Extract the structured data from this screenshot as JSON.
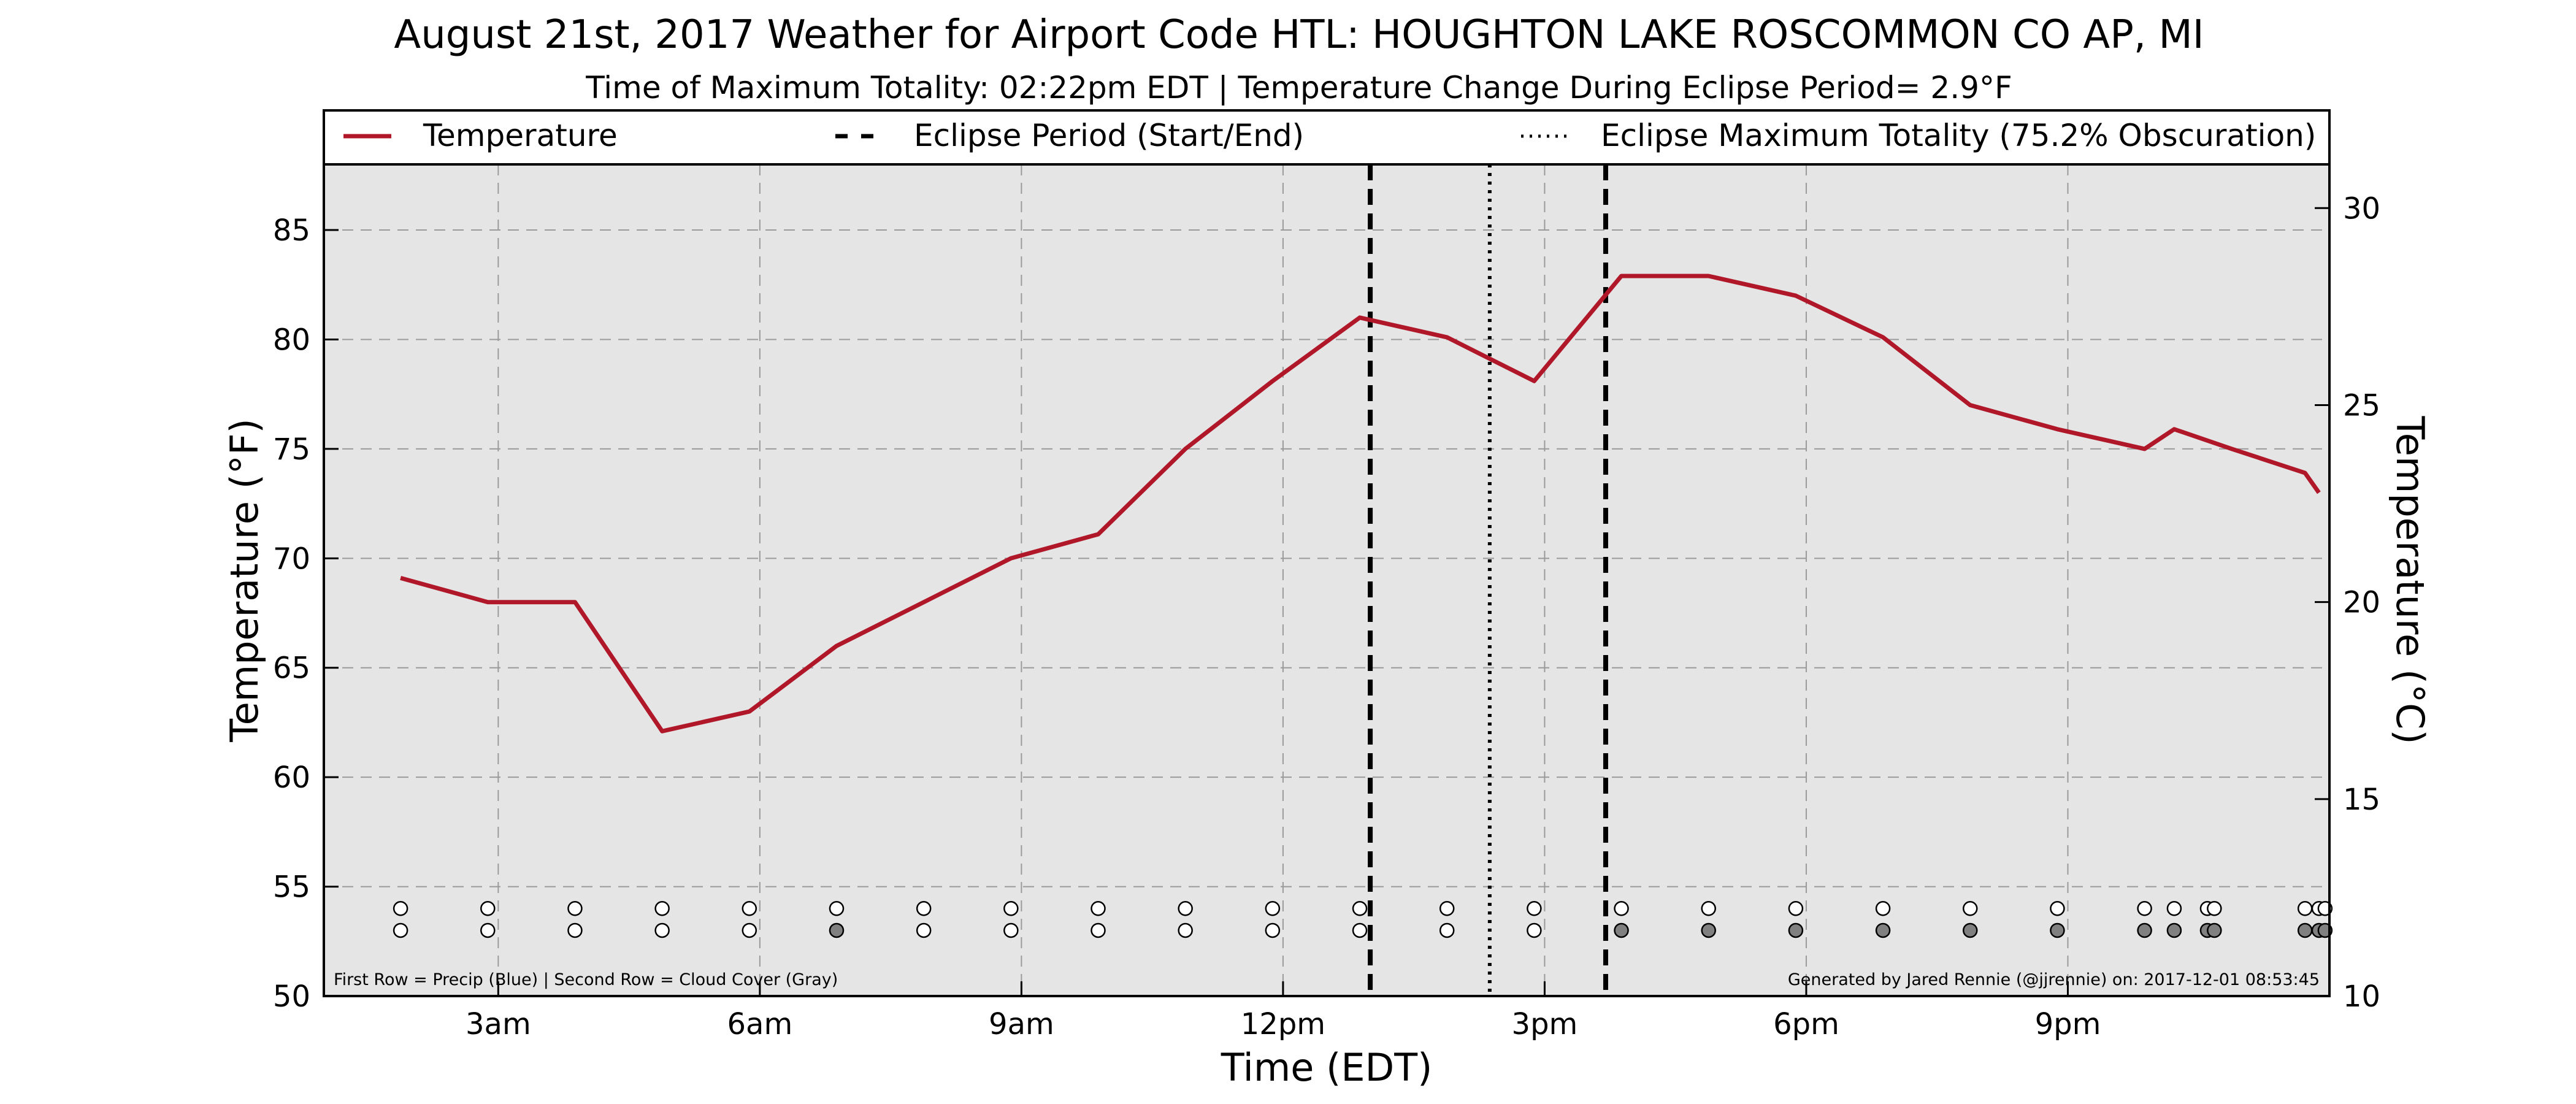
{
  "chart_data": {
    "type": "line",
    "title": "August 21st, 2017 Weather for Airport Code HTL: HOUGHTON LAKE ROSCOMMON CO AP, MI",
    "subtitle": "Time of Maximum Totality: 02:22pm EDT | Temperature Change During Eclipse Period= 2.9°F",
    "xlabel": "Time (EDT)",
    "ylabel": "Temperature (°F)",
    "ylabel_right": "Temperature (°C)",
    "xlim": [
      1.0,
      24.0
    ],
    "ylim": [
      50,
      88
    ],
    "ylim_right": [
      10,
      31.11
    ],
    "x_ticks": [
      3,
      6,
      9,
      12,
      15,
      18,
      21
    ],
    "x_tick_labels": [
      "3am",
      "6am",
      "9am",
      "12pm",
      "3pm",
      "6pm",
      "9pm"
    ],
    "y_ticks": [
      50,
      55,
      60,
      65,
      70,
      75,
      80,
      85
    ],
    "y_ticks_right": [
      10,
      15,
      20,
      25,
      30
    ],
    "grid": true,
    "legend_position": "top",
    "legend": [
      {
        "label": "Temperature",
        "style": "solid",
        "color": "#b0182a"
      },
      {
        "label": "Eclipse Period (Start/End)",
        "style": "dashed",
        "color": "#000000"
      },
      {
        "label": "Eclipse Maximum Totality (75.2% Obscuration)",
        "style": "dotted",
        "color": "#000000"
      }
    ],
    "series": [
      {
        "name": "Temperature",
        "color": "#b0182a",
        "x": [
          1.88,
          2.88,
          3.88,
          4.88,
          5.88,
          6.88,
          7.88,
          8.88,
          9.88,
          10.88,
          11.88,
          12.88,
          13.88,
          14.88,
          15.88,
          16.88,
          17.88,
          18.88,
          19.88,
          20.88,
          21.88,
          22.22,
          22.88,
          23.72,
          23.88
        ],
        "y": [
          69.1,
          68.0,
          68.0,
          62.1,
          63.0,
          66.0,
          68.0,
          70.0,
          71.1,
          75.0,
          78.1,
          81.0,
          80.1,
          78.1,
          82.9,
          82.9,
          82.0,
          80.1,
          77.0,
          75.9,
          75.0,
          75.9,
          75.0,
          73.9,
          73.0
        ]
      }
    ],
    "eclipse_start": 13.0,
    "eclipse_max": 14.37,
    "eclipse_end": 15.7,
    "observation_markers": {
      "x": [
        1.88,
        2.88,
        3.88,
        4.88,
        5.88,
        6.88,
        7.88,
        8.88,
        9.88,
        10.88,
        11.88,
        12.88,
        13.88,
        14.88,
        15.88,
        16.88,
        17.88,
        18.88,
        19.88,
        20.88,
        21.88,
        22.22,
        22.6,
        22.68,
        23.72,
        23.88,
        23.95
      ],
      "precip_fill": [
        "#ffffff"
      ],
      "cloud_cover": [
        "#ffffff",
        "#ffffff",
        "#ffffff",
        "#ffffff",
        "#ffffff",
        "#808080",
        "#ffffff",
        "#ffffff",
        "#ffffff",
        "#ffffff",
        "#ffffff",
        "#ffffff",
        "#ffffff",
        "#ffffff",
        "#808080",
        "#808080",
        "#808080",
        "#808080",
        "#808080",
        "#808080",
        "#808080",
        "#808080",
        "#808080",
        "#808080",
        "#808080",
        "#808080",
        "#808080"
      ]
    },
    "footnote_left": "First Row = Precip (Blue) | Second Row = Cloud Cover (Gray)",
    "footnote_right": "Generated by Jared Rennie (@jjrennie) on: 2017-12-01 08:53:45"
  }
}
